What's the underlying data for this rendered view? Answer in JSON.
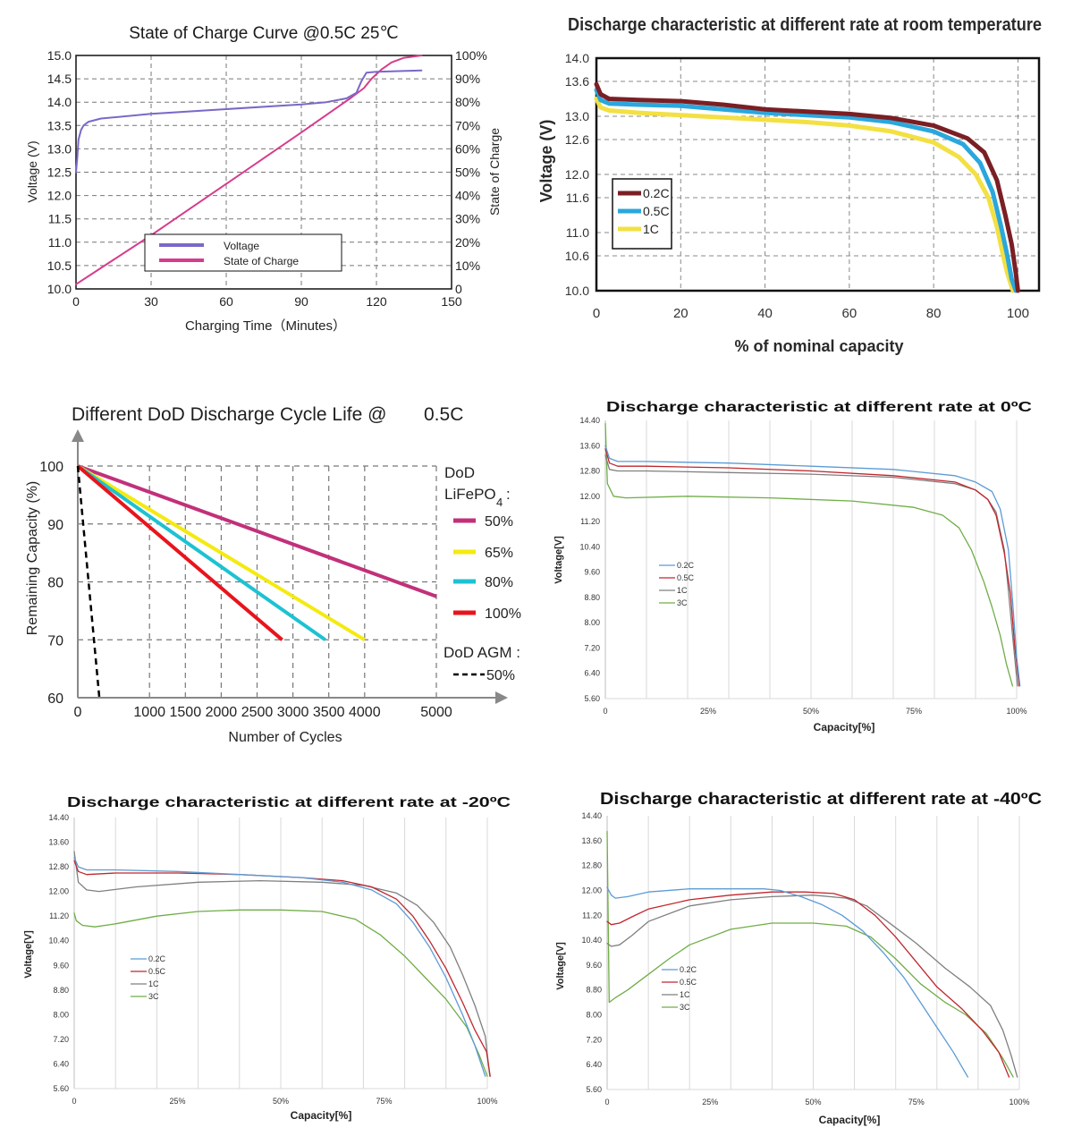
{
  "colors": {
    "soc_voltage": "#7b68c8",
    "soc_charge": "#d63c8c",
    "rt_02": "#7a1f24",
    "rt_05": "#2aa7dc",
    "rt_1": "#f3e042",
    "dod_50": "#c2307a",
    "dod_65": "#f4ea10",
    "dod_80": "#1cc2d2",
    "dod_100": "#e8141c",
    "dod_agm": "#000000",
    "low_02": "#5b9bd5",
    "low_05": "#c0262d",
    "low_1": "#7f7f7f",
    "low_3": "#70ad47"
  },
  "chart_data": [
    {
      "id": "soc",
      "type": "line",
      "title": "State of Charge Curve @0.5C 25℃",
      "xlabel": "Charging Time（Minutes）",
      "ylabel": "Voltage (V)",
      "y2label": "State of Charge",
      "xlim": [
        0,
        150
      ],
      "ylim": [
        10,
        15
      ],
      "y2lim": [
        0,
        100
      ],
      "xticks": [
        "0",
        "30",
        "60",
        "90",
        "120",
        "150"
      ],
      "yticks": [
        "10.0",
        "10.5",
        "11.0",
        "11.5",
        "12.0",
        "12.5",
        "13.0",
        "13.5",
        "14.0",
        "14.5",
        "15.0"
      ],
      "y2ticks": [
        "0",
        "10%",
        "20%",
        "30%",
        "40%",
        "50%",
        "60%",
        "70%",
        "80%",
        "90%",
        "100%"
      ],
      "legend_position": "bottom-center",
      "series": [
        {
          "name": "Voltage",
          "axis": "left",
          "x": [
            0,
            0.5,
            1,
            2,
            3,
            5,
            10,
            30,
            60,
            90,
            100,
            108,
            112,
            114,
            116,
            120,
            138
          ],
          "y": [
            12.5,
            12.8,
            13.2,
            13.4,
            13.5,
            13.58,
            13.65,
            13.75,
            13.85,
            13.95,
            14.0,
            14.08,
            14.2,
            14.45,
            14.63,
            14.65,
            14.68
          ]
        },
        {
          "name": "State of Charge",
          "axis": "right",
          "x": [
            0,
            30,
            60,
            90,
            110,
            115,
            118,
            122,
            126,
            131,
            138
          ],
          "y": [
            2,
            23,
            45,
            67,
            82,
            86,
            90,
            94,
            97,
            99,
            100
          ]
        }
      ]
    },
    {
      "id": "rt",
      "type": "line",
      "title": "Discharge characteristic at different rate at room temperature",
      "xlabel": "% of nominal capacity",
      "ylabel": "Voltage (V)",
      "xlim": [
        0,
        105
      ],
      "ylim": [
        10,
        14
      ],
      "xticks": [
        "0",
        "20",
        "40",
        "60",
        "80",
        "100"
      ],
      "yticks": [
        "10.0",
        "10.6",
        "11.0",
        "11.6",
        "12.0",
        "12.6",
        "13.0",
        "13.6",
        "14.0"
      ],
      "legend_position": "bottom-left",
      "series": [
        {
          "name": "0.2C",
          "x": [
            0,
            1,
            3,
            10,
            20,
            30,
            40,
            50,
            60,
            70,
            80,
            88,
            92,
            95,
            97,
            98.5,
            99.5,
            100
          ],
          "y": [
            13.55,
            13.38,
            13.3,
            13.28,
            13.26,
            13.2,
            13.12,
            13.08,
            13.04,
            12.97,
            12.84,
            12.62,
            12.38,
            11.9,
            11.3,
            10.8,
            10.3,
            10.0
          ]
        },
        {
          "name": "0.5C",
          "x": [
            0,
            1,
            3,
            10,
            20,
            30,
            40,
            50,
            60,
            70,
            80,
            87,
            91,
            94,
            96,
            97.5,
            98.5,
            99.5
          ],
          "y": [
            13.45,
            13.28,
            13.22,
            13.2,
            13.18,
            13.12,
            13.06,
            13.02,
            12.98,
            12.9,
            12.74,
            12.52,
            12.2,
            11.7,
            11.1,
            10.6,
            10.2,
            10.0
          ]
        },
        {
          "name": "1C",
          "x": [
            0,
            1,
            3,
            10,
            20,
            30,
            40,
            50,
            60,
            70,
            80,
            86,
            90,
            93,
            95,
            96.5,
            97.5,
            98.8
          ],
          "y": [
            13.3,
            13.15,
            13.1,
            13.06,
            13.02,
            12.98,
            12.94,
            12.9,
            12.84,
            12.74,
            12.55,
            12.3,
            12.0,
            11.6,
            11.1,
            10.6,
            10.3,
            10.0
          ]
        }
      ]
    },
    {
      "id": "dod",
      "type": "line",
      "title": "Different DoD Discharge Cycle Life @",
      "title_suffix": "0.5C",
      "xlabel": "Number of Cycles",
      "ylabel": "Remaining Capacity (%)",
      "xlim": [
        0,
        5000
      ],
      "ylim": [
        60,
        100
      ],
      "xticks": [
        "0",
        "1000",
        "1500",
        "2000",
        "2500",
        "3000",
        "3500",
        "4000",
        "5000"
      ],
      "yticks": [
        "60",
        "70",
        "80",
        "90",
        "100"
      ],
      "legend_title": "DoD",
      "legend_group": "LiFePO",
      "legend_group_sub": "4",
      "legend_group_tail": ":",
      "legend2_title": "DoD AGM :",
      "series": [
        {
          "name": "50%",
          "group": "LiFePO4",
          "x": [
            0,
            5000
          ],
          "y": [
            100,
            77.5
          ]
        },
        {
          "name": "65%",
          "group": "LiFePO4",
          "x": [
            0,
            4000
          ],
          "y": [
            100,
            70
          ]
        },
        {
          "name": "80%",
          "group": "LiFePO4",
          "x": [
            0,
            3450
          ],
          "y": [
            100,
            70
          ]
        },
        {
          "name": "100%",
          "group": "LiFePO4",
          "x": [
            0,
            2850
          ],
          "y": [
            100,
            70
          ]
        },
        {
          "name": "50%",
          "group": "AGM",
          "x": [
            0,
            300
          ],
          "y": [
            100,
            60
          ]
        }
      ]
    },
    {
      "id": "t0",
      "type": "line",
      "title": "Discharge characteristic at different rate at 0ºC",
      "xlabel": "Capacity[%]",
      "ylabel": "Voltage[V]",
      "xlim": [
        0,
        100
      ],
      "ylim": [
        5.6,
        14.4
      ],
      "xticks": [
        "0",
        "25%",
        "50%",
        "75%",
        "100%"
      ],
      "yticks": [
        "5.60",
        "6.40",
        "7.20",
        "8.00",
        "8.80",
        "9.60",
        "10.40",
        "11.20",
        "12.00",
        "12.80",
        "13.60",
        "14.40"
      ],
      "legend_position": "left-center",
      "series": [
        {
          "name": "0.2C",
          "x": [
            0,
            1,
            3,
            10,
            30,
            50,
            70,
            85,
            90,
            94,
            96,
            98,
            99,
            100,
            100.8
          ],
          "y": [
            13.6,
            13.2,
            13.1,
            13.1,
            13.05,
            12.95,
            12.85,
            12.65,
            12.45,
            12.15,
            11.6,
            10.3,
            8.7,
            6.9,
            6.0
          ]
        },
        {
          "name": "0.5C",
          "x": [
            0,
            1,
            3,
            10,
            30,
            50,
            70,
            85,
            90,
            93,
            95,
            97,
            98.5,
            99.5,
            100.6
          ],
          "y": [
            13.5,
            13.05,
            12.95,
            12.95,
            12.9,
            12.8,
            12.65,
            12.45,
            12.2,
            11.9,
            11.4,
            10.2,
            8.9,
            7.3,
            6.0
          ]
        },
        {
          "name": "1C",
          "x": [
            0,
            1,
            3,
            10,
            30,
            50,
            70,
            85,
            90,
            93,
            95,
            97,
            98,
            99,
            100.2
          ],
          "y": [
            13.3,
            12.85,
            12.8,
            12.8,
            12.75,
            12.7,
            12.6,
            12.4,
            12.2,
            11.9,
            11.5,
            10.3,
            9.0,
            7.6,
            6.0
          ]
        },
        {
          "name": "3C",
          "x": [
            0,
            0.5,
            2,
            5,
            20,
            40,
            60,
            75,
            82,
            86,
            89,
            92,
            94,
            96,
            97.5,
            99
          ],
          "y": [
            14.3,
            12.4,
            12.0,
            11.95,
            12.0,
            11.95,
            11.85,
            11.65,
            11.4,
            11.0,
            10.3,
            9.3,
            8.5,
            7.6,
            6.7,
            6.0
          ]
        }
      ]
    },
    {
      "id": "tm20",
      "type": "line",
      "title": "Discharge characteristic at different rate at -20ºC",
      "xlabel": "Capacity[%]",
      "ylabel": "Voltage[V]",
      "xlim": [
        0,
        100
      ],
      "ylim": [
        5.6,
        14.4
      ],
      "xticks": [
        "0",
        "25%",
        "50%",
        "75%",
        "100%"
      ],
      "yticks": [
        "5.60",
        "6.40",
        "7.20",
        "8.00",
        "8.80",
        "9.60",
        "10.40",
        "11.20",
        "12.00",
        "12.80",
        "13.60",
        "14.40"
      ],
      "legend_position": "left-center",
      "series": [
        {
          "name": "0.2C",
          "x": [
            0,
            1,
            3,
            10,
            25,
            40,
            55,
            65,
            72,
            78,
            82,
            86,
            90,
            94,
            97,
            99.5
          ],
          "y": [
            13.1,
            12.8,
            12.7,
            12.7,
            12.65,
            12.55,
            12.45,
            12.3,
            12.05,
            11.6,
            11.0,
            10.2,
            9.2,
            8.0,
            7.0,
            6.0
          ]
        },
        {
          "name": "0.5C",
          "x": [
            0,
            1,
            3,
            10,
            25,
            40,
            55,
            65,
            72,
            78,
            82,
            86,
            90,
            94,
            97,
            99.8,
            100.7
          ],
          "y": [
            13.0,
            12.65,
            12.55,
            12.6,
            12.6,
            12.55,
            12.45,
            12.35,
            12.15,
            11.75,
            11.2,
            10.4,
            9.5,
            8.4,
            7.5,
            6.8,
            6.0
          ]
        },
        {
          "name": "1C",
          "x": [
            0,
            1,
            3,
            6,
            15,
            30,
            45,
            60,
            70,
            78,
            83,
            87,
            91,
            94,
            97,
            99.5,
            100.6
          ],
          "y": [
            13.3,
            12.3,
            12.05,
            12.0,
            12.15,
            12.3,
            12.35,
            12.3,
            12.2,
            11.95,
            11.55,
            11.0,
            10.2,
            9.3,
            8.3,
            7.3,
            6.0
          ]
        },
        {
          "name": "3C",
          "x": [
            0,
            0.5,
            2,
            5,
            10,
            20,
            30,
            40,
            50,
            60,
            68,
            74,
            80,
            85,
            90,
            95,
            98,
            100
          ],
          "y": [
            11.3,
            11.05,
            10.9,
            10.85,
            10.95,
            11.2,
            11.35,
            11.4,
            11.4,
            11.35,
            11.1,
            10.6,
            9.9,
            9.2,
            8.5,
            7.6,
            6.7,
            6.0
          ]
        }
      ]
    },
    {
      "id": "tm40",
      "type": "line",
      "title": "Discharge characteristic at different rate at -40ºC",
      "xlabel": "Capacity[%]",
      "ylabel": "Voltage[V]",
      "xlim": [
        0,
        100
      ],
      "ylim": [
        5.6,
        14.4
      ],
      "xticks": [
        "0",
        "25%",
        "50%",
        "75%",
        "100%"
      ],
      "yticks": [
        "5.60",
        "6.40",
        "7.20",
        "8.00",
        "8.80",
        "9.60",
        "10.40",
        "11.20",
        "12.00",
        "12.80",
        "13.60",
        "14.40"
      ],
      "legend_position": "left-center",
      "series": [
        {
          "name": "0.2C",
          "x": [
            0,
            1,
            2,
            5,
            10,
            20,
            30,
            38,
            42,
            47,
            52,
            57,
            62,
            67,
            72,
            76,
            80,
            84,
            87.5
          ],
          "y": [
            12.1,
            11.85,
            11.75,
            11.8,
            11.95,
            12.05,
            12.05,
            12.05,
            12.0,
            11.8,
            11.55,
            11.2,
            10.7,
            10.0,
            9.2,
            8.4,
            7.6,
            6.8,
            6.0
          ]
        },
        {
          "name": "0.5C",
          "x": [
            0,
            1,
            3,
            6,
            10,
            20,
            30,
            40,
            48,
            55,
            60,
            65,
            70,
            75,
            80,
            86,
            91,
            95,
            97.5
          ],
          "y": [
            11.0,
            10.9,
            10.95,
            11.15,
            11.4,
            11.7,
            11.85,
            11.95,
            11.95,
            11.9,
            11.7,
            11.2,
            10.5,
            9.7,
            8.9,
            8.2,
            7.5,
            6.8,
            6.0
          ]
        },
        {
          "name": "1C",
          "x": [
            0,
            1,
            3,
            6,
            10,
            20,
            30,
            40,
            50,
            58,
            63,
            68,
            75,
            82,
            88,
            93,
            96,
            98,
            99.5
          ],
          "y": [
            10.3,
            10.2,
            10.25,
            10.55,
            11.0,
            11.5,
            11.7,
            11.8,
            11.85,
            11.75,
            11.5,
            11.0,
            10.3,
            9.5,
            8.9,
            8.3,
            7.5,
            6.7,
            6.0
          ]
        },
        {
          "name": "3C",
          "x": [
            0,
            0.5,
            2,
            5,
            10,
            15,
            20,
            30,
            40,
            50,
            58,
            64,
            70,
            76,
            82,
            87,
            92,
            96,
            98.5
          ],
          "y": [
            13.9,
            8.4,
            8.55,
            8.8,
            9.3,
            9.8,
            10.25,
            10.75,
            10.95,
            10.95,
            10.85,
            10.5,
            9.8,
            9.0,
            8.4,
            8.0,
            7.4,
            6.6,
            6.0
          ]
        }
      ]
    }
  ]
}
